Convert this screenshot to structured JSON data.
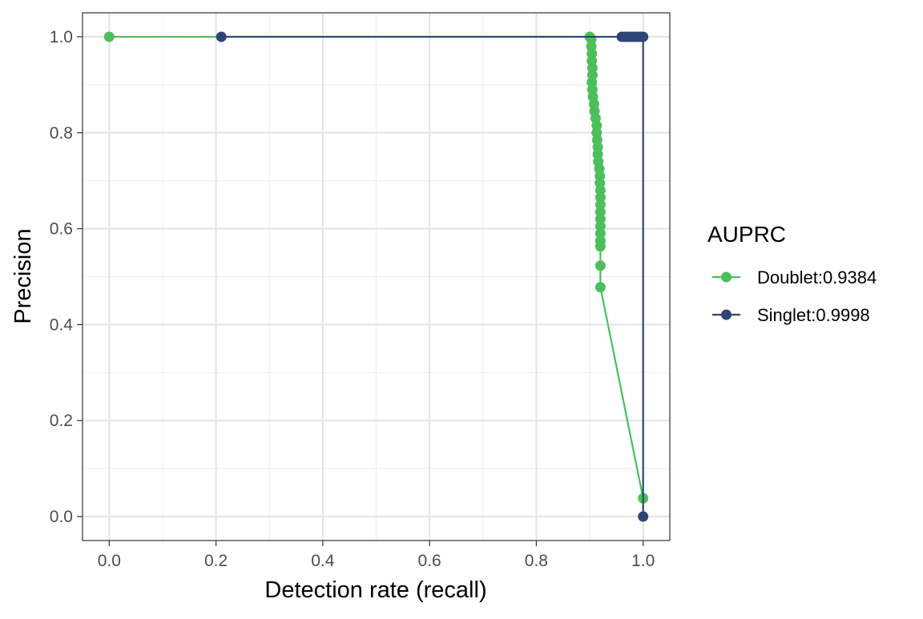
{
  "chart_data": {
    "type": "line",
    "title": "",
    "xlabel": "Detection rate (recall)",
    "ylabel": "Precision",
    "xlim": [
      -0.05,
      1.05
    ],
    "ylim": [
      -0.05,
      1.05
    ],
    "xticks": [
      0.0,
      0.2,
      0.4,
      0.6,
      0.8,
      1.0
    ],
    "xtick_labels": [
      "0.0",
      "0.2",
      "0.4",
      "0.6",
      "0.8",
      "1.0"
    ],
    "yticks": [
      0.0,
      0.2,
      0.4,
      0.6,
      0.8,
      1.0
    ],
    "ytick_labels": [
      "0.0",
      "0.2",
      "0.4",
      "0.6",
      "0.8",
      "1.0"
    ],
    "grid": true,
    "legend": {
      "title": "AUPRC",
      "position": "right"
    },
    "series": [
      {
        "name": "Doublet:0.9384",
        "color": "#4CBF5A",
        "points": [
          [
            0.0,
            1.0
          ],
          [
            0.9,
            1.0
          ],
          [
            0.903,
            0.995
          ],
          [
            0.903,
            0.98
          ],
          [
            0.904,
            0.965
          ],
          [
            0.904,
            0.95
          ],
          [
            0.905,
            0.935
          ],
          [
            0.905,
            0.92
          ],
          [
            0.904,
            0.905
          ],
          [
            0.905,
            0.89
          ],
          [
            0.906,
            0.875
          ],
          [
            0.908,
            0.86
          ],
          [
            0.909,
            0.845
          ],
          [
            0.911,
            0.83
          ],
          [
            0.913,
            0.815
          ],
          [
            0.913,
            0.8
          ],
          [
            0.914,
            0.785
          ],
          [
            0.915,
            0.77
          ],
          [
            0.915,
            0.755
          ],
          [
            0.916,
            0.74
          ],
          [
            0.918,
            0.725
          ],
          [
            0.919,
            0.71
          ],
          [
            0.919,
            0.695
          ],
          [
            0.92,
            0.68
          ],
          [
            0.92,
            0.665
          ],
          [
            0.92,
            0.65
          ],
          [
            0.92,
            0.635
          ],
          [
            0.92,
            0.62
          ],
          [
            0.92,
            0.605
          ],
          [
            0.92,
            0.59
          ],
          [
            0.92,
            0.575
          ],
          [
            0.92,
            0.563
          ],
          [
            0.92,
            0.523
          ],
          [
            0.92,
            0.478
          ],
          [
            1.0,
            0.038
          ]
        ]
      },
      {
        "name": "Singlet:0.9998",
        "color": "#2E4576",
        "points": [
          [
            0.21,
            1.0
          ],
          [
            0.96,
            1.0
          ],
          [
            0.965,
            1.0
          ],
          [
            0.97,
            1.0
          ],
          [
            0.975,
            1.0
          ],
          [
            0.98,
            1.0
          ],
          [
            0.985,
            1.0
          ],
          [
            0.99,
            1.0
          ],
          [
            0.995,
            1.0
          ],
          [
            1.0,
            1.0
          ],
          [
            1.0,
            0.0
          ]
        ]
      }
    ]
  }
}
